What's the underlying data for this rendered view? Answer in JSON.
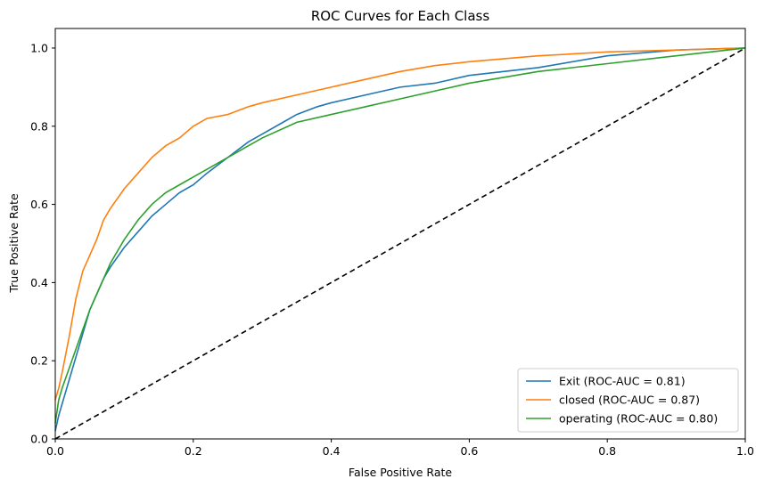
{
  "chart_data": {
    "type": "line",
    "title": "ROC Curves for Each Class",
    "xlabel": "False Positive Rate",
    "ylabel": "True Positive Rate",
    "xlim": [
      0.0,
      1.0
    ],
    "ylim": [
      0.0,
      1.05
    ],
    "xticks": [
      "0.0",
      "0.2",
      "0.4",
      "0.6",
      "0.8",
      "1.0"
    ],
    "yticks": [
      "0.0",
      "0.2",
      "0.4",
      "0.6",
      "0.8",
      "1.0"
    ],
    "grid": false,
    "legend_position": "lower right",
    "series": [
      {
        "name": "Exit (ROC-AUC = 0.81)",
        "color": "#1f77b4",
        "x": [
          0,
          0.005,
          0.01,
          0.015,
          0.02,
          0.03,
          0.04,
          0.05,
          0.06,
          0.07,
          0.08,
          0.1,
          0.12,
          0.14,
          0.16,
          0.18,
          0.2,
          0.22,
          0.25,
          0.28,
          0.3,
          0.33,
          0.35,
          0.38,
          0.4,
          0.45,
          0.5,
          0.55,
          0.6,
          0.7,
          0.8,
          0.9,
          1.0
        ],
        "y": [
          0.02,
          0.06,
          0.09,
          0.12,
          0.15,
          0.21,
          0.27,
          0.33,
          0.37,
          0.41,
          0.44,
          0.49,
          0.53,
          0.57,
          0.6,
          0.63,
          0.65,
          0.68,
          0.72,
          0.76,
          0.78,
          0.81,
          0.83,
          0.85,
          0.86,
          0.88,
          0.9,
          0.91,
          0.93,
          0.95,
          0.98,
          0.995,
          1.0
        ]
      },
      {
        "name": "closed (ROC-AUC = 0.87)",
        "color": "#ff7f0e",
        "x": [
          0,
          0.005,
          0.01,
          0.02,
          0.03,
          0.04,
          0.05,
          0.06,
          0.07,
          0.08,
          0.1,
          0.12,
          0.14,
          0.16,
          0.18,
          0.2,
          0.22,
          0.25,
          0.28,
          0.3,
          0.35,
          0.4,
          0.45,
          0.5,
          0.55,
          0.6,
          0.7,
          0.8,
          0.9,
          1.0
        ],
        "y": [
          0.1,
          0.13,
          0.17,
          0.26,
          0.36,
          0.43,
          0.47,
          0.51,
          0.56,
          0.59,
          0.64,
          0.68,
          0.72,
          0.75,
          0.77,
          0.8,
          0.82,
          0.83,
          0.85,
          0.86,
          0.88,
          0.9,
          0.92,
          0.94,
          0.955,
          0.965,
          0.98,
          0.99,
          0.995,
          1.0
        ]
      },
      {
        "name": "operating (ROC-AUC = 0.80)",
        "color": "#2ca02c",
        "x": [
          0,
          0.005,
          0.01,
          0.02,
          0.03,
          0.04,
          0.05,
          0.06,
          0.07,
          0.08,
          0.1,
          0.12,
          0.14,
          0.16,
          0.18,
          0.2,
          0.22,
          0.25,
          0.28,
          0.3,
          0.35,
          0.4,
          0.45,
          0.5,
          0.55,
          0.6,
          0.7,
          0.8,
          0.9,
          1.0
        ],
        "y": [
          0.04,
          0.1,
          0.13,
          0.18,
          0.23,
          0.28,
          0.33,
          0.37,
          0.41,
          0.45,
          0.51,
          0.56,
          0.6,
          0.63,
          0.65,
          0.67,
          0.69,
          0.72,
          0.75,
          0.77,
          0.81,
          0.83,
          0.85,
          0.87,
          0.89,
          0.91,
          0.94,
          0.96,
          0.98,
          1.0
        ]
      },
      {
        "name": "",
        "color": "#000000",
        "dashed": true,
        "x": [
          0,
          1
        ],
        "y": [
          0,
          1
        ]
      }
    ]
  }
}
